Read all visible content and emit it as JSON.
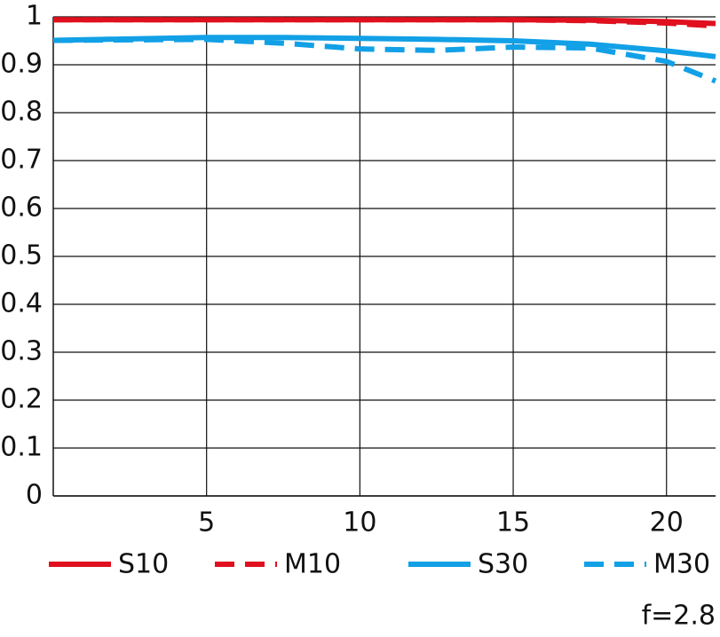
{
  "chart_data": {
    "type": "line",
    "annotation": "f=2.8",
    "x": [
      0,
      2.5,
      5,
      7.5,
      10,
      12.5,
      15,
      17.5,
      20,
      21.6
    ],
    "series": [
      {
        "name": "S10",
        "color": "#e0101e",
        "dash": false,
        "values": [
          0.994,
          0.994,
          0.994,
          0.994,
          0.994,
          0.994,
          0.994,
          0.993,
          0.99,
          0.986
        ]
      },
      {
        "name": "M10",
        "color": "#e0101e",
        "dash": true,
        "values": [
          0.994,
          0.994,
          0.994,
          0.994,
          0.994,
          0.994,
          0.994,
          0.992,
          0.987,
          0.981
        ]
      },
      {
        "name": "S30",
        "color": "#12a0e6",
        "dash": false,
        "values": [
          0.951,
          0.954,
          0.957,
          0.957,
          0.955,
          0.953,
          0.95,
          0.943,
          0.929,
          0.917
        ]
      },
      {
        "name": "M30",
        "color": "#12a0e6",
        "dash": true,
        "values": [
          0.951,
          0.952,
          0.953,
          0.945,
          0.933,
          0.93,
          0.937,
          0.935,
          0.907,
          0.866
        ]
      }
    ],
    "xlim": [
      0,
      21.6
    ],
    "xticks": [
      5,
      10,
      15,
      20
    ],
    "ylim": [
      0,
      1
    ],
    "yticks": [
      0,
      0.1,
      0.2,
      0.3,
      0.4,
      0.5,
      0.6,
      0.7,
      0.8,
      0.9,
      1
    ],
    "grid": true,
    "legend": "bottom"
  }
}
